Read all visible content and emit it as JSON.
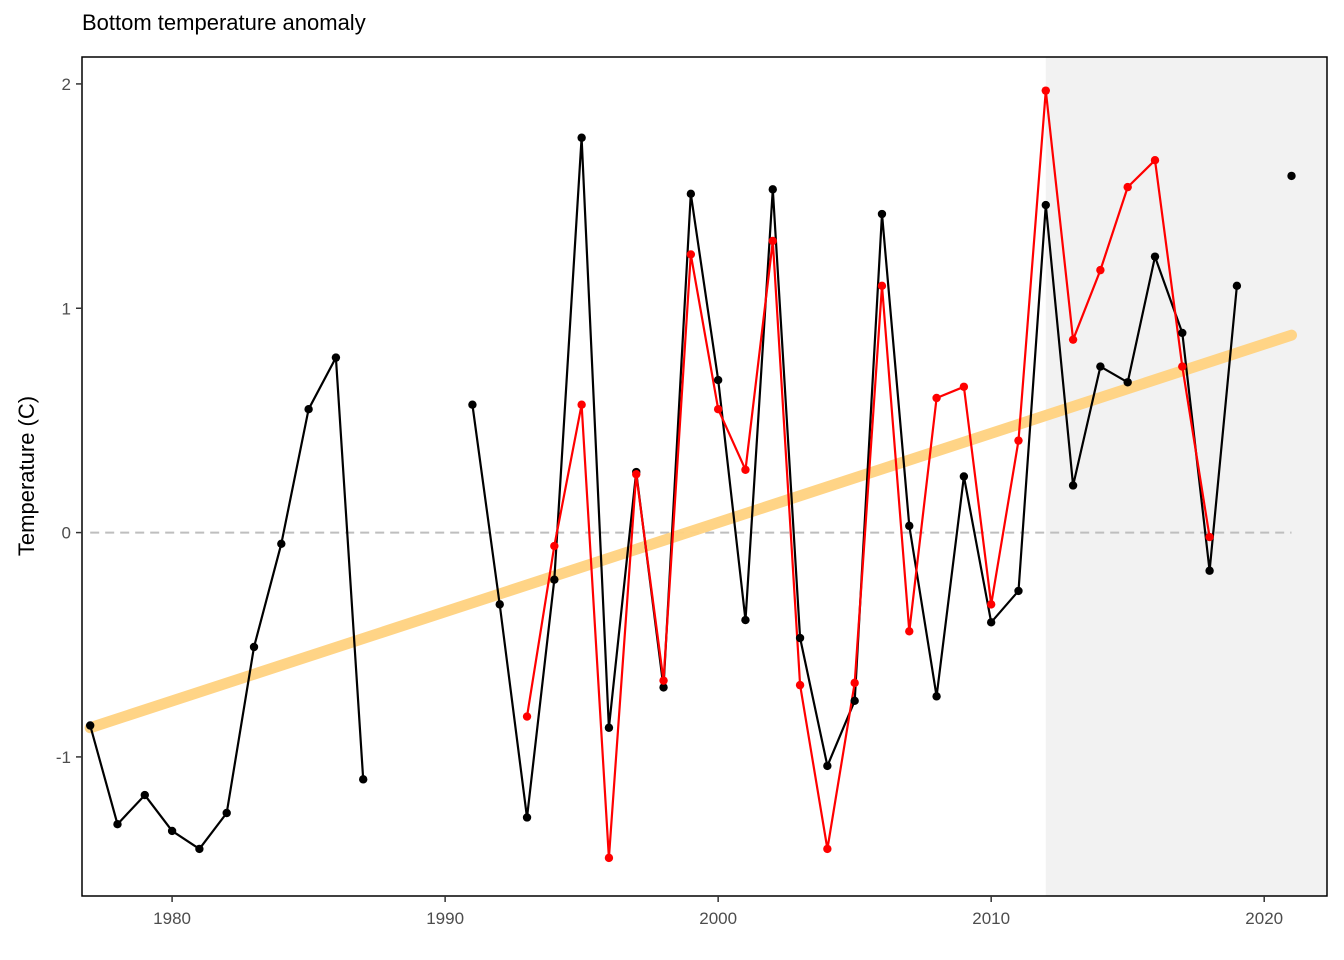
{
  "chart_data": {
    "type": "line",
    "title": "Bottom temperature anomaly",
    "xlabel": "",
    "ylabel": "Temperature (C)",
    "xlim": [
      1976.7,
      2022.3
    ],
    "ylim": [
      -1.62,
      2.12
    ],
    "x_ticks": [
      1980,
      1990,
      2000,
      2010,
      2020
    ],
    "y_ticks": [
      -1,
      0,
      1,
      2
    ],
    "y_tick_labels": [
      "-1",
      "0",
      "1",
      "2"
    ],
    "grid": false,
    "reference_line": {
      "y": 0,
      "style": "dashed",
      "color": "#bebebe"
    },
    "shaded_region": {
      "x_start": 2012,
      "x_end": 2022.3,
      "color": "#f2f2f2"
    },
    "trend": {
      "x": [
        1977,
        2021
      ],
      "y": [
        -0.87,
        0.88
      ],
      "color": "#ffd27f"
    },
    "series": [
      {
        "color": "#000000",
        "x": [
          1977,
          1978,
          1979,
          1980,
          1981,
          1982,
          1983,
          1984,
          1985,
          1986,
          1987,
          1988,
          1989,
          1990,
          1991,
          1992,
          1993,
          1994,
          1995,
          1996,
          1997,
          1998,
          1999,
          2000,
          2001,
          2002,
          2003,
          2004,
          2005,
          2006,
          2007,
          2008,
          2009,
          2010,
          2011,
          2012,
          2013,
          2014,
          2015,
          2016,
          2017,
          2018,
          2019,
          2020,
          2021
        ],
        "y": [
          -0.86,
          -1.3,
          -1.17,
          -1.33,
          -1.41,
          -1.25,
          -0.51,
          -0.05,
          0.55,
          0.78,
          -1.1,
          null,
          null,
          null,
          0.57,
          -0.32,
          -1.27,
          -0.21,
          1.76,
          -0.87,
          0.27,
          -0.69,
          1.51,
          0.68,
          -0.39,
          1.53,
          -0.47,
          -1.04,
          -0.75,
          1.42,
          0.03,
          -0.73,
          0.25,
          -0.4,
          -0.26,
          1.46,
          0.21,
          0.74,
          0.67,
          1.23,
          0.89,
          -0.17,
          1.1,
          null,
          1.59
        ]
      },
      {
        "color": "#ff0000",
        "x": [
          1993,
          1994,
          1995,
          1996,
          1997,
          1998,
          1999,
          2000,
          2001,
          2002,
          2003,
          2004,
          2005,
          2006,
          2007,
          2008,
          2009,
          2010,
          2011,
          2012,
          2013,
          2014,
          2015,
          2016,
          2017,
          2018
        ],
        "y": [
          -0.82,
          -0.06,
          0.57,
          -1.45,
          0.26,
          -0.66,
          1.24,
          0.55,
          0.28,
          1.3,
          -0.68,
          -1.41,
          -0.67,
          1.1,
          -0.44,
          0.6,
          0.65,
          -0.32,
          0.41,
          1.97,
          0.86,
          1.17,
          1.54,
          1.66,
          0.74,
          -0.02
        ]
      }
    ]
  }
}
